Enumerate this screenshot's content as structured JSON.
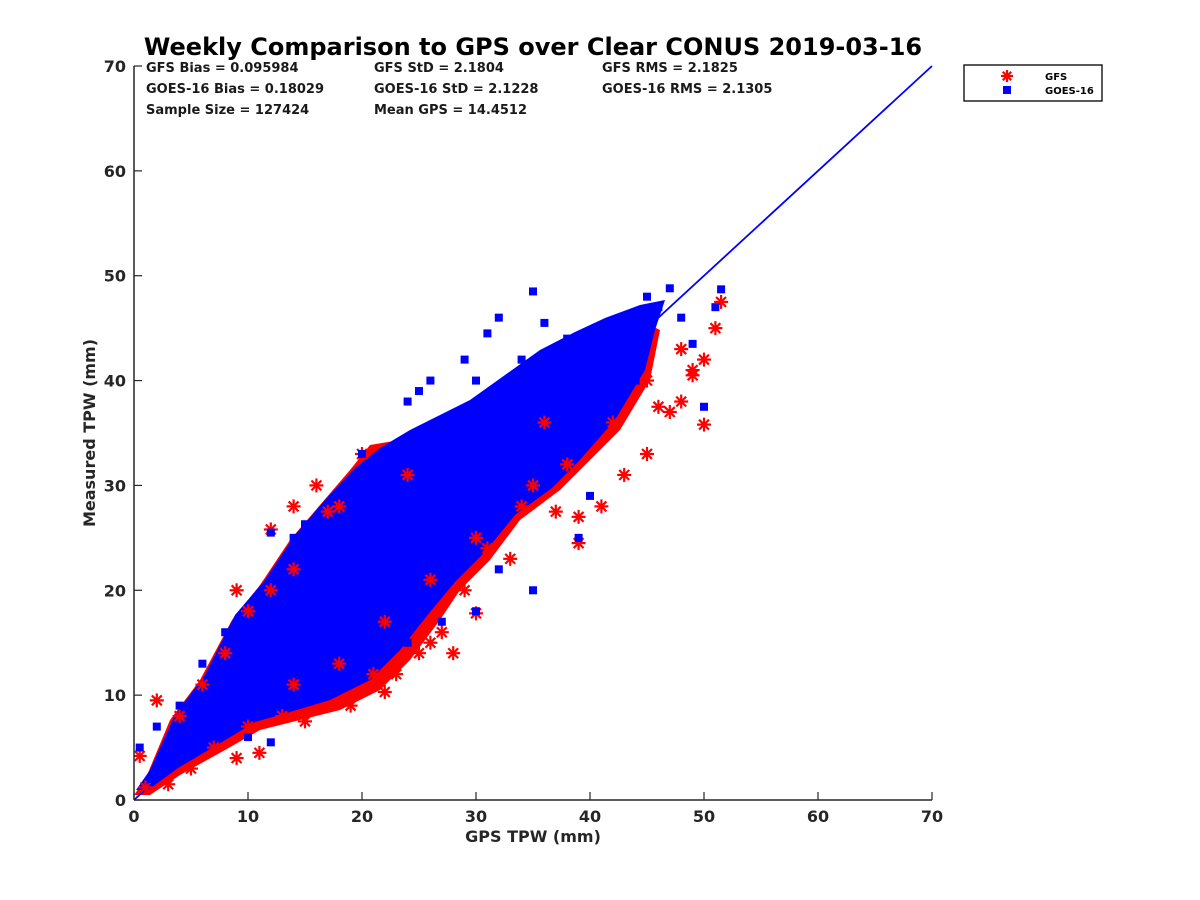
{
  "chart_data": {
    "type": "scatter",
    "title": "Weekly Comparison to GPS over Clear CONUS 2019-03-16",
    "xlabel": "GPS TPW (mm)",
    "ylabel": "Measured TPW (mm)",
    "xlim": [
      0,
      70
    ],
    "ylim": [
      0,
      70
    ],
    "xticks": [
      "0",
      "10",
      "20",
      "30",
      "40",
      "50",
      "60",
      "70"
    ],
    "yticks": [
      "0",
      "10",
      "20",
      "30",
      "40",
      "50",
      "60",
      "70"
    ],
    "grid": false,
    "legend_position": "outside-top-right",
    "stats": [
      [
        "GFS Bias = 0.095984",
        "GFS StD = 2.1804",
        "GFS RMS = 2.1825"
      ],
      [
        "GOES-16 Bias = 0.18029",
        "GOES-16 StD = 2.1228",
        "GOES-16 RMS = 2.1305"
      ],
      [
        "Sample Size = 127424",
        "Mean GPS = 14.4512"
      ]
    ],
    "series": [
      {
        "name": "GFS",
        "marker": "asterisk",
        "color": "#ff0000",
        "points": [
          [
            0.5,
            4.2
          ],
          [
            1,
            1.2
          ],
          [
            2,
            9.5
          ],
          [
            3,
            1.5
          ],
          [
            4,
            8
          ],
          [
            5,
            3
          ],
          [
            6,
            11
          ],
          [
            7,
            5
          ],
          [
            8,
            14
          ],
          [
            9,
            20
          ],
          [
            9,
            4
          ],
          [
            10,
            18
          ],
          [
            10,
            7
          ],
          [
            11,
            4.5
          ],
          [
            12,
            25.8
          ],
          [
            12,
            20
          ],
          [
            13,
            8
          ],
          [
            14,
            28
          ],
          [
            14,
            22
          ],
          [
            15,
            7.5
          ],
          [
            16,
            30
          ],
          [
            17,
            27.5
          ],
          [
            18,
            28
          ],
          [
            19,
            9
          ],
          [
            20,
            33
          ],
          [
            21,
            12
          ],
          [
            22,
            10.3
          ],
          [
            23,
            12
          ],
          [
            24,
            31
          ],
          [
            25,
            14
          ],
          [
            26,
            15
          ],
          [
            27,
            16
          ],
          [
            28,
            14
          ],
          [
            29,
            20
          ],
          [
            30,
            17.8
          ],
          [
            31,
            24
          ],
          [
            33,
            23
          ],
          [
            35,
            30
          ],
          [
            36,
            36
          ],
          [
            37,
            27.5
          ],
          [
            38,
            32
          ],
          [
            39,
            24.5
          ],
          [
            39,
            27
          ],
          [
            41,
            28
          ],
          [
            43,
            31
          ],
          [
            45,
            33
          ],
          [
            46,
            37.5
          ],
          [
            47,
            37
          ],
          [
            48,
            43
          ],
          [
            48,
            38
          ],
          [
            49,
            41
          ],
          [
            49,
            40.5
          ],
          [
            50,
            35.8
          ],
          [
            50,
            42
          ],
          [
            51,
            45
          ],
          [
            51.5,
            47.5
          ],
          [
            14,
            11
          ],
          [
            18,
            13
          ],
          [
            22,
            17
          ],
          [
            26,
            21
          ],
          [
            30,
            25
          ],
          [
            34,
            28
          ],
          [
            38,
            32
          ],
          [
            42,
            36
          ],
          [
            45,
            40
          ]
        ]
      },
      {
        "name": "GOES-16",
        "marker": "square",
        "color": "#0000ff",
        "points": [
          [
            0.5,
            5
          ],
          [
            1.5,
            2
          ],
          [
            2,
            7
          ],
          [
            3,
            3
          ],
          [
            4,
            9
          ],
          [
            6,
            13
          ],
          [
            8,
            16
          ],
          [
            10,
            6
          ],
          [
            11,
            18.5
          ],
          [
            12,
            5.5
          ],
          [
            12,
            25.5
          ],
          [
            14,
            25
          ],
          [
            15,
            26.3
          ],
          [
            16,
            14
          ],
          [
            18,
            19
          ],
          [
            20,
            33
          ],
          [
            21,
            28
          ],
          [
            23,
            30
          ],
          [
            24,
            38
          ],
          [
            25,
            39
          ],
          [
            26,
            40
          ],
          [
            27,
            33
          ],
          [
            29,
            42
          ],
          [
            30,
            40
          ],
          [
            31,
            44.5
          ],
          [
            32,
            46
          ],
          [
            33,
            40
          ],
          [
            34,
            42
          ],
          [
            35,
            48.5
          ],
          [
            36,
            45.5
          ],
          [
            37,
            42
          ],
          [
            38,
            44
          ],
          [
            39,
            25
          ],
          [
            40,
            29
          ],
          [
            41,
            44
          ],
          [
            43,
            46
          ],
          [
            44,
            40
          ],
          [
            45,
            48
          ],
          [
            46,
            47
          ],
          [
            47,
            48.8
          ],
          [
            48,
            46
          ],
          [
            49,
            43.5
          ],
          [
            50,
            37.5
          ],
          [
            51,
            47
          ],
          [
            51.5,
            48.7
          ],
          [
            30,
            18
          ],
          [
            35,
            20
          ],
          [
            27,
            17
          ],
          [
            24,
            15
          ],
          [
            32,
            22
          ]
        ]
      }
    ],
    "reference_line": {
      "name": "1:1 line",
      "color": "#0000ff",
      "x": [
        0,
        70
      ],
      "y": [
        0,
        70
      ]
    }
  }
}
